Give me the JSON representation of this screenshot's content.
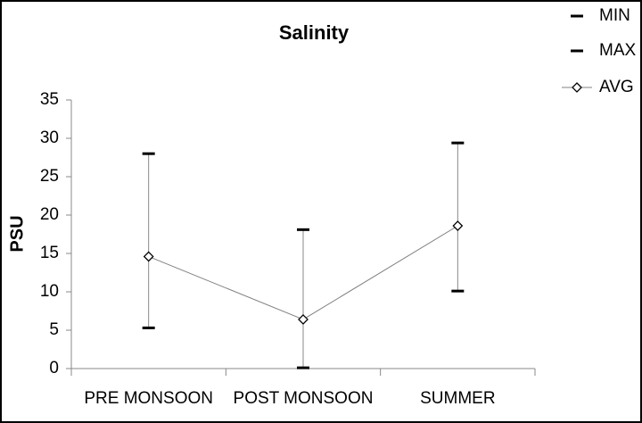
{
  "chart_data": {
    "type": "line",
    "title": "Salinity",
    "y_label": "PSU",
    "categories": [
      "PRE MONSOON",
      "POST MONSOON",
      "SUMMER"
    ],
    "series": [
      {
        "name": "MIN",
        "color": "#000000",
        "marker": "dash",
        "line": false,
        "values": [
          5.3,
          0.1,
          10.1
        ]
      },
      {
        "name": "MAX",
        "color": "#000000",
        "marker": "dash",
        "line": false,
        "values": [
          28,
          18.1,
          29.4
        ]
      },
      {
        "name": "AVG",
        "color": "#808080",
        "marker": "diamond",
        "line": true,
        "values": [
          14.6,
          6.4,
          18.6
        ]
      }
    ],
    "high_low_lines": true,
    "ylim": [
      0,
      35
    ],
    "yticks": [
      0,
      5,
      10,
      15,
      20,
      25,
      30,
      35
    ],
    "grid": false,
    "legend": "top-right"
  }
}
